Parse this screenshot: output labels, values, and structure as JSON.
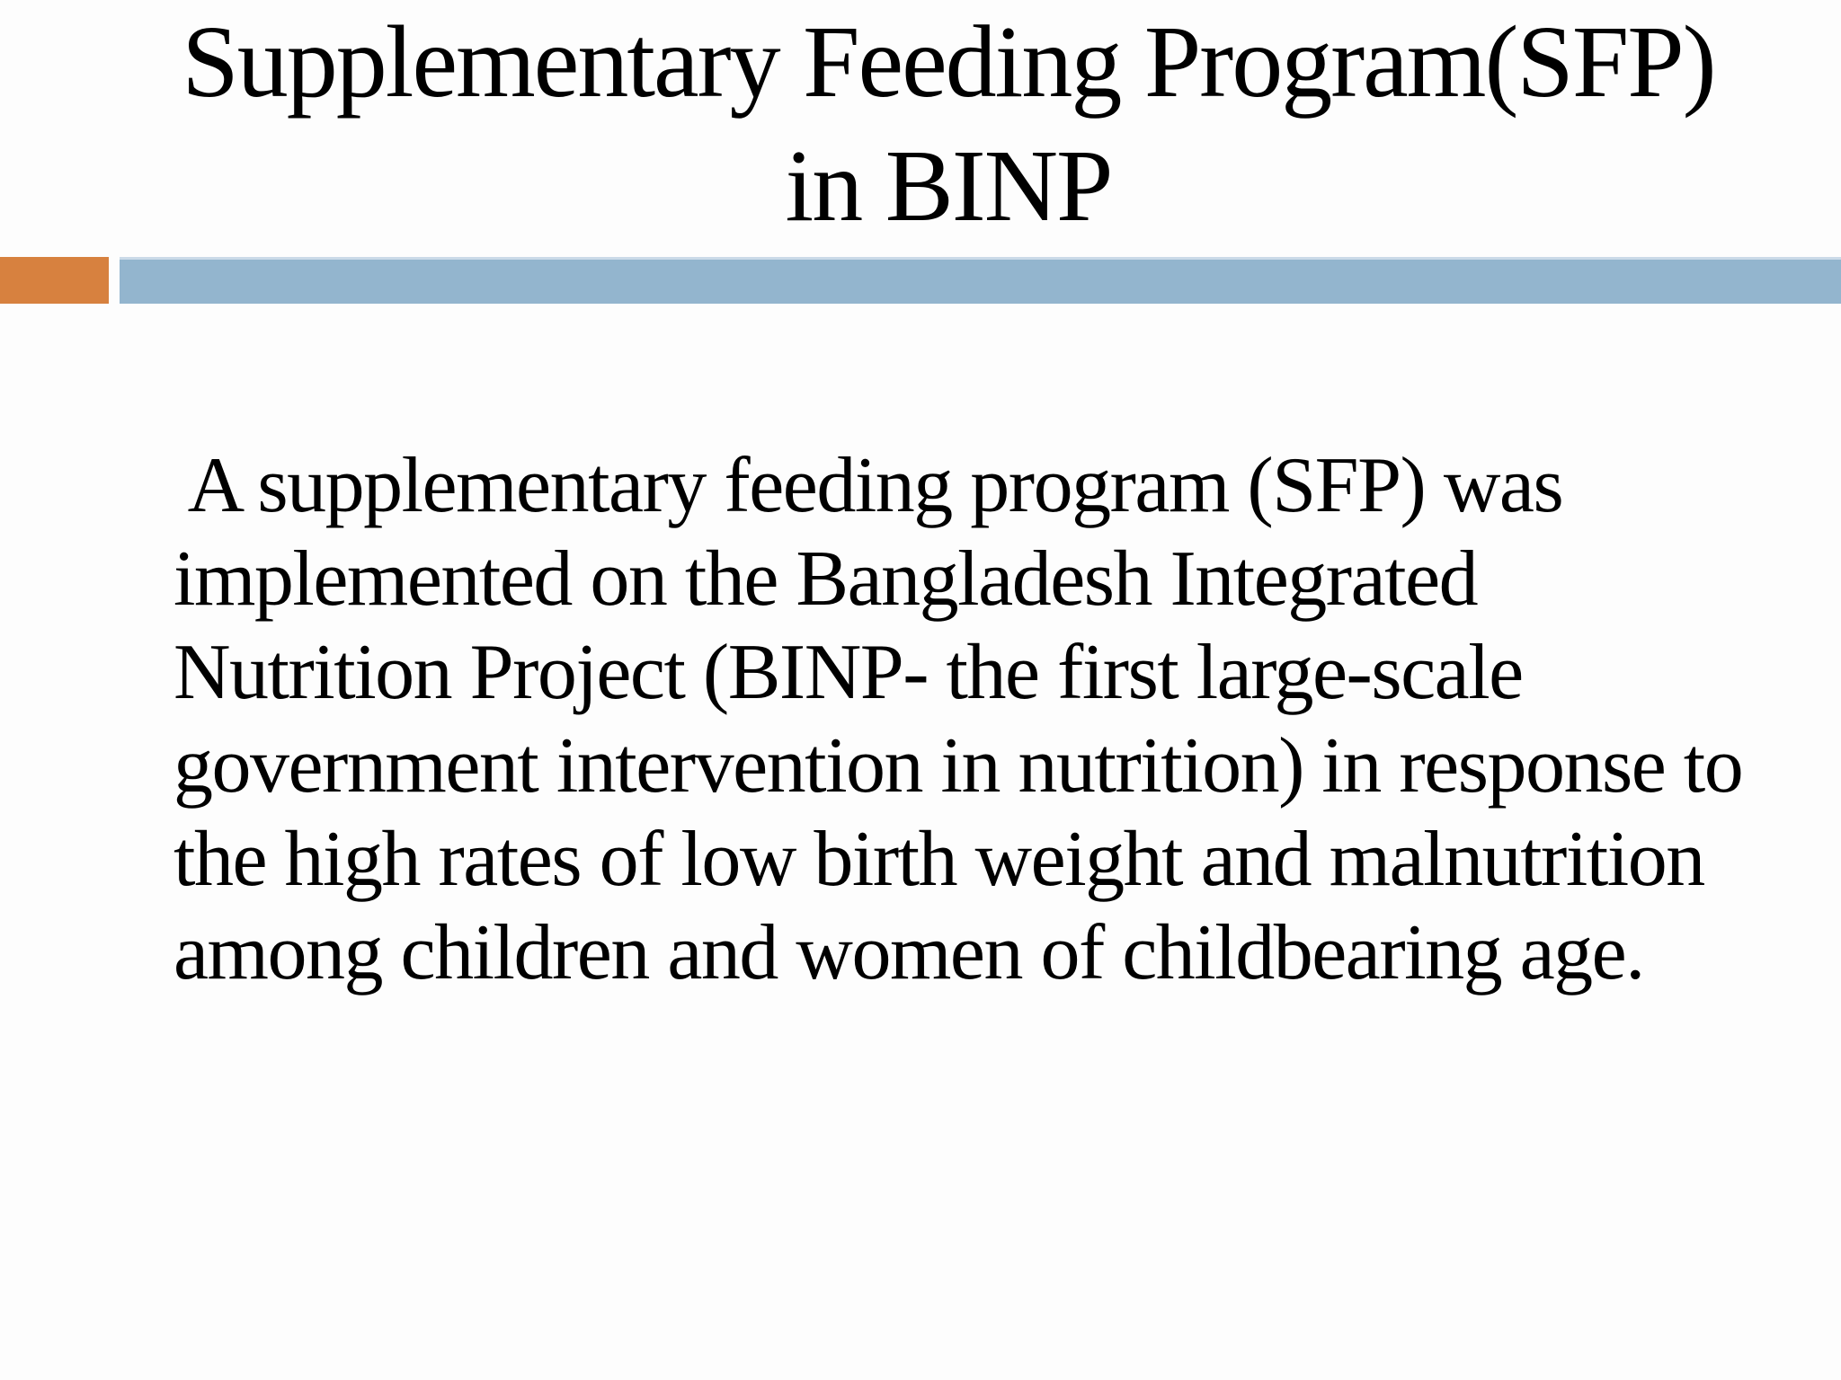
{
  "slide": {
    "title": {
      "lines": [
        "Supplementary Feeding Program(SFP)",
        "in BINP"
      ]
    },
    "body": {
      "lines": [
        " A supplementary feeding program (SFP) was",
        "implemented on the Bangladesh Integrated",
        "Nutrition Project (BINP- the first large-scale",
        "government intervention in nutrition) in response to",
        "the high rates of low birth weight and malnutrition",
        "among children and women of childbearing age."
      ]
    },
    "colors": {
      "background": "#FDFDFD",
      "title_text": "#000000",
      "body_text": "#000000",
      "accent_orange": "#D7813F",
      "accent_blue": "#93B5CE"
    }
  }
}
